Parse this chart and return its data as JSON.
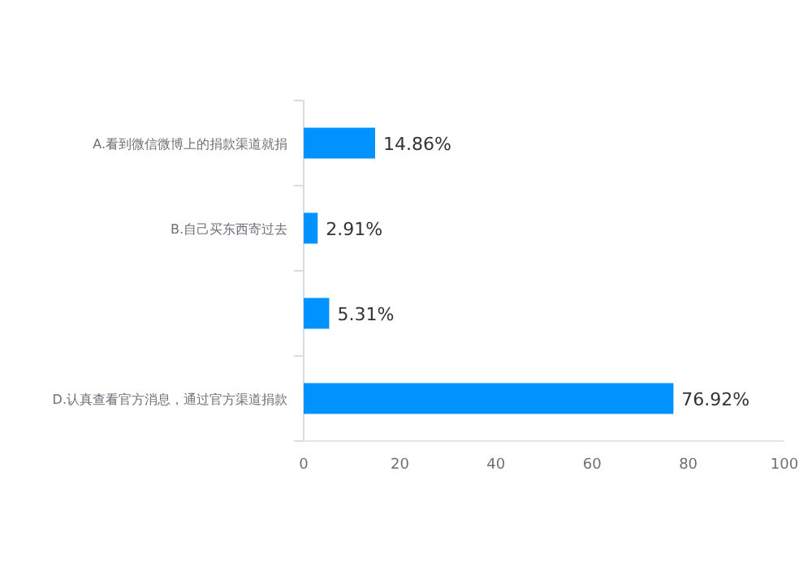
{
  "chart_data": {
    "type": "bar",
    "orientation": "horizontal",
    "color": "#0092ff",
    "categories": [
      "A.看到微信微博上的捐款渠道就捐",
      "B.自己买东西寄过去",
      null,
      "D.认真查看官方消息，通过官方渠道捐款"
    ],
    "values": [
      14.86,
      2.91,
      5.31,
      76.92
    ],
    "value_labels": [
      "14.86%",
      "2.91%",
      "5.31%",
      "76.92%"
    ],
    "xlim": [
      0,
      100
    ],
    "xticks": [
      0,
      20,
      40,
      60,
      80,
      100
    ]
  }
}
